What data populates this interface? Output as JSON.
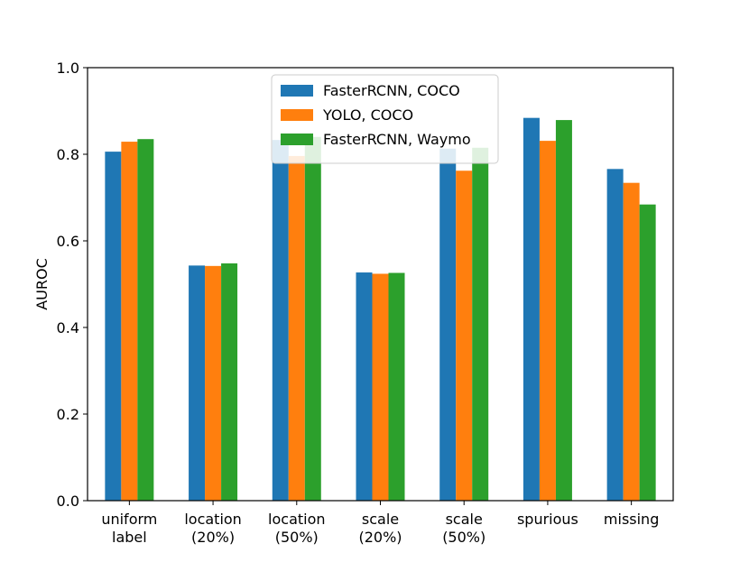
{
  "chart_data": {
    "type": "bar",
    "title": "",
    "xlabel": "",
    "ylabel": "AUROC",
    "ylim": [
      0,
      1.0
    ],
    "yticks": [
      "0.0",
      "0.2",
      "0.4",
      "0.6",
      "0.8",
      "1.0"
    ],
    "grid": false,
    "legend_position": "top-center",
    "categories": [
      [
        "uniform",
        "label"
      ],
      [
        "location",
        "(20%)"
      ],
      [
        "location",
        "(50%)"
      ],
      [
        "scale",
        "(20%)"
      ],
      [
        "scale",
        "(50%)"
      ],
      [
        "spurious"
      ],
      [
        "missing"
      ]
    ],
    "series": [
      {
        "name": "FasterRCNN, COCO",
        "color": "#1f77b4",
        "values": [
          0.806,
          0.543,
          0.833,
          0.527,
          0.813,
          0.884,
          0.766
        ]
      },
      {
        "name": "YOLO, COCO",
        "color": "#ff7f0e",
        "values": [
          0.829,
          0.542,
          0.796,
          0.524,
          0.762,
          0.831,
          0.734
        ]
      },
      {
        "name": "FasterRCNN, Waymo",
        "color": "#2ca02c",
        "values": [
          0.835,
          0.548,
          0.84,
          0.526,
          0.815,
          0.879,
          0.684
        ]
      }
    ]
  }
}
